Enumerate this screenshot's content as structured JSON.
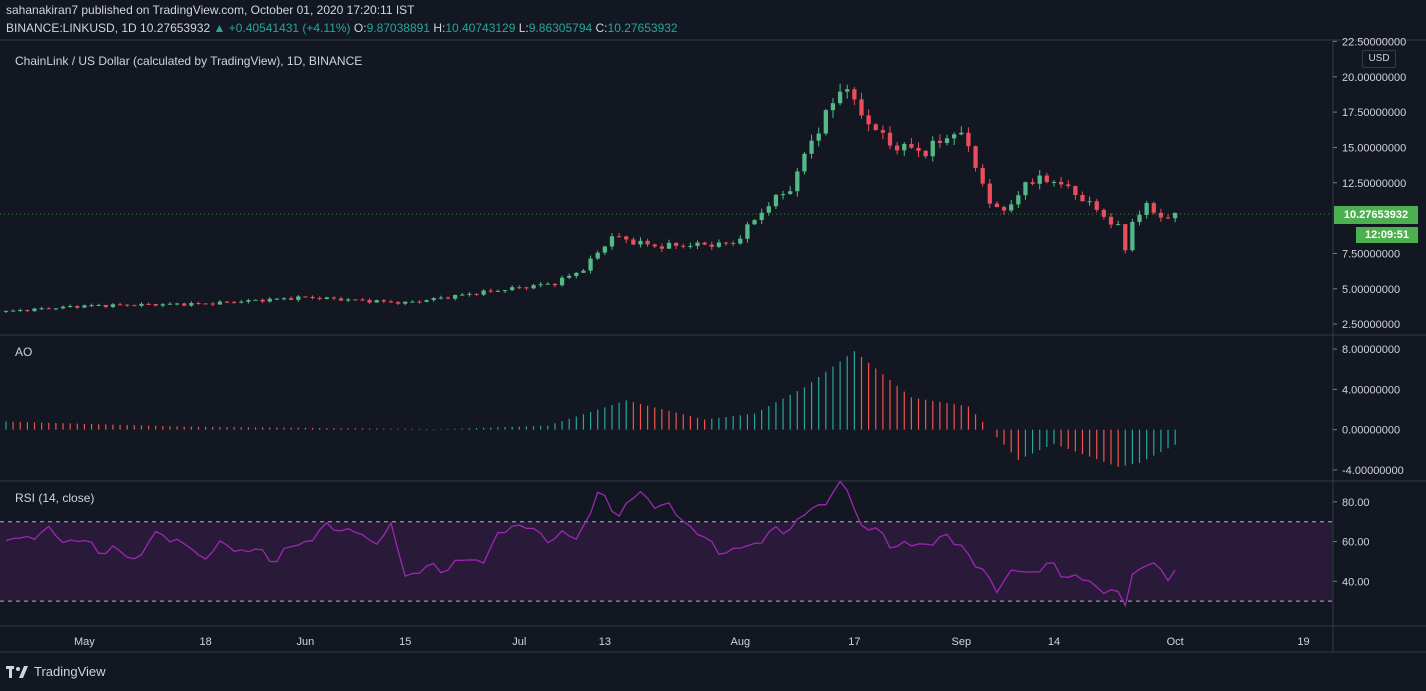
{
  "header": {
    "publisher_line": "sahanakiran7 published on TradingView.com, October 01, 2020 17:20:11 IST",
    "symbol": "BINANCE:LINKUSD, 1D",
    "last_price": "10.27653932",
    "change": "▲ +0.40541431 (+4.11%)",
    "o_label": "O:",
    "o_value": "9.87038891",
    "h_label": "H:",
    "h_value": "10.40743129",
    "l_label": "L:",
    "l_value": "9.86305794",
    "c_label": "C:",
    "c_value": "10.27653932"
  },
  "price_pane": {
    "title": "ChainLink / US Dollar (calculated by TradingView), 1D, BINANCE",
    "currency": "USD",
    "price_badge": "10.27653932",
    "countdown_badge": "12:09:51"
  },
  "ao_pane": {
    "title": "AO"
  },
  "rsi_pane": {
    "title": "RSI (14, close)"
  },
  "footer": {
    "brand": "TradingView"
  },
  "colors": {
    "background": "#131722",
    "up": "#26a69a",
    "down": "#ef5350",
    "candle_up": "#53b987",
    "candle_down": "#eb4d5c",
    "rsi_line": "#9c27b0",
    "rsi_band": "#2a1a3a",
    "ao_up": "#26a69a",
    "ao_down": "#ef5350",
    "price_label": "#4caf50"
  },
  "chart_data": [
    {
      "type": "candlestick",
      "title": "ChainLink / US Dollar (calculated by TradingView), 1D, BINANCE",
      "x_ticks": [
        "May",
        "18",
        "Jun",
        "15",
        "Jul",
        "13",
        "Aug",
        "17",
        "Sep",
        "14",
        "Oct",
        "19"
      ],
      "y_ticks": [
        "2.50000000",
        "5.00000000",
        "7.50000000",
        "12.50000000",
        "15.00000000",
        "17.50000000",
        "20.00000000",
        "22.50000000"
      ],
      "ylim": [
        1.8,
        22.6
      ],
      "x_range_dates": [
        "2020-04-20",
        "2020-10-23"
      ],
      "scale": "linear",
      "series": [
        {
          "name": "LINKUSD",
          "key_points": [
            {
              "date": "2020-04-20",
              "close": 3.4
            },
            {
              "date": "2020-05-01",
              "close": 3.8
            },
            {
              "date": "2020-05-18",
              "close": 3.95
            },
            {
              "date": "2020-06-01",
              "close": 4.4
            },
            {
              "date": "2020-06-15",
              "close": 4.0
            },
            {
              "date": "2020-06-25",
              "close": 4.7
            },
            {
              "date": "2020-07-06",
              "close": 5.4
            },
            {
              "date": "2020-07-10",
              "close": 6.4
            },
            {
              "date": "2020-07-14",
              "close": 8.7
            },
            {
              "date": "2020-07-20",
              "close": 8.0
            },
            {
              "date": "2020-07-31",
              "close": 8.2
            },
            {
              "date": "2020-08-05",
              "close": 11.0
            },
            {
              "date": "2020-08-08",
              "close": 12.1
            },
            {
              "date": "2020-08-11",
              "close": 15.5
            },
            {
              "date": "2020-08-15",
              "close": 19.0
            },
            {
              "date": "2020-08-16",
              "close": 19.5
            },
            {
              "date": "2020-08-17",
              "close": 17.9
            },
            {
              "date": "2020-08-22",
              "close": 15.2
            },
            {
              "date": "2020-08-27",
              "close": 14.7
            },
            {
              "date": "2020-08-31",
              "close": 16.1
            },
            {
              "date": "2020-09-02",
              "close": 15.2
            },
            {
              "date": "2020-09-05",
              "close": 10.9
            },
            {
              "date": "2020-09-08",
              "close": 10.7
            },
            {
              "date": "2020-09-10",
              "close": 12.6
            },
            {
              "date": "2020-09-14",
              "close": 12.7
            },
            {
              "date": "2020-09-18",
              "close": 11.4
            },
            {
              "date": "2020-09-23",
              "close": 9.3
            },
            {
              "date": "2020-09-24",
              "close": 7.8
            },
            {
              "date": "2020-09-25",
              "close": 9.8
            },
            {
              "date": "2020-09-27",
              "close": 10.8
            },
            {
              "date": "2020-09-30",
              "close": 9.87
            },
            {
              "date": "2020-10-01",
              "close": 10.28
            }
          ]
        }
      ],
      "last_value": 10.27653932,
      "grid": false
    },
    {
      "type": "bar",
      "title": "AO",
      "y_ticks": [
        "-4.00000000",
        "0.00000000",
        "4.00000000",
        "8.00000000"
      ],
      "ylim": [
        -5.0,
        9.3
      ],
      "series": [
        {
          "name": "AO",
          "key_points": [
            {
              "date": "2020-04-20",
              "value": 0.8
            },
            {
              "date": "2020-05-15",
              "value": 0.3
            },
            {
              "date": "2020-06-20",
              "value": 0.05
            },
            {
              "date": "2020-07-05",
              "value": 0.4
            },
            {
              "date": "2020-07-16",
              "value": 2.9
            },
            {
              "date": "2020-07-27",
              "value": 1.0
            },
            {
              "date": "2020-08-03",
              "value": 1.6
            },
            {
              "date": "2020-08-10",
              "value": 4.2
            },
            {
              "date": "2020-08-17",
              "value": 7.8
            },
            {
              "date": "2020-08-25",
              "value": 3.2
            },
            {
              "date": "2020-09-02",
              "value": 2.3
            },
            {
              "date": "2020-09-05",
              "value": 0.0
            },
            {
              "date": "2020-09-09",
              "value": -3.0
            },
            {
              "date": "2020-09-14",
              "value": -1.4
            },
            {
              "date": "2020-09-23",
              "value": -3.7
            },
            {
              "date": "2020-09-26",
              "value": -3.3
            },
            {
              "date": "2020-10-01",
              "value": -1.5
            }
          ]
        }
      ]
    },
    {
      "type": "line",
      "title": "RSI (14, close)",
      "y_ticks": [
        "40.00",
        "60.00",
        "80.00"
      ],
      "ylim": [
        18,
        90
      ],
      "bands": [
        30,
        70
      ],
      "series": [
        {
          "name": "RSI",
          "key_points": [
            {
              "date": "2020-04-20",
              "value": 59
            },
            {
              "date": "2020-04-25",
              "value": 65
            },
            {
              "date": "2020-05-08",
              "value": 52
            },
            {
              "date": "2020-05-12",
              "value": 65
            },
            {
              "date": "2020-05-17",
              "value": 53
            },
            {
              "date": "2020-05-21",
              "value": 58
            },
            {
              "date": "2020-05-28",
              "value": 52
            },
            {
              "date": "2020-06-03",
              "value": 65
            },
            {
              "date": "2020-06-06",
              "value": 68
            },
            {
              "date": "2020-06-10",
              "value": 60
            },
            {
              "date": "2020-06-13",
              "value": 66
            },
            {
              "date": "2020-06-15",
              "value": 44
            },
            {
              "date": "2020-06-20",
              "value": 47
            },
            {
              "date": "2020-06-26",
              "value": 52
            },
            {
              "date": "2020-06-30",
              "value": 70
            },
            {
              "date": "2020-07-04",
              "value": 63
            },
            {
              "date": "2020-07-09",
              "value": 62
            },
            {
              "date": "2020-07-12",
              "value": 83
            },
            {
              "date": "2020-07-15",
              "value": 75
            },
            {
              "date": "2020-07-18",
              "value": 84
            },
            {
              "date": "2020-07-24",
              "value": 72
            },
            {
              "date": "2020-07-27",
              "value": 60
            },
            {
              "date": "2020-07-31",
              "value": 54
            },
            {
              "date": "2020-08-03",
              "value": 60
            },
            {
              "date": "2020-08-07",
              "value": 66
            },
            {
              "date": "2020-08-11",
              "value": 75
            },
            {
              "date": "2020-08-13",
              "value": 82
            },
            {
              "date": "2020-08-15",
              "value": 87
            },
            {
              "date": "2020-08-16",
              "value": 86
            },
            {
              "date": "2020-08-18",
              "value": 69
            },
            {
              "date": "2020-08-22",
              "value": 60
            },
            {
              "date": "2020-08-25",
              "value": 57
            },
            {
              "date": "2020-08-28",
              "value": 61
            },
            {
              "date": "2020-09-01",
              "value": 60
            },
            {
              "date": "2020-09-03",
              "value": 47
            },
            {
              "date": "2020-09-06",
              "value": 38
            },
            {
              "date": "2020-09-09",
              "value": 45
            },
            {
              "date": "2020-09-14",
              "value": 47
            },
            {
              "date": "2020-09-18",
              "value": 40
            },
            {
              "date": "2020-09-21",
              "value": 37
            },
            {
              "date": "2020-09-24",
              "value": 29
            },
            {
              "date": "2020-09-25",
              "value": 45
            },
            {
              "date": "2020-09-27",
              "value": 48
            },
            {
              "date": "2020-09-30",
              "value": 44
            },
            {
              "date": "2020-10-01",
              "value": 46
            }
          ]
        }
      ]
    }
  ]
}
